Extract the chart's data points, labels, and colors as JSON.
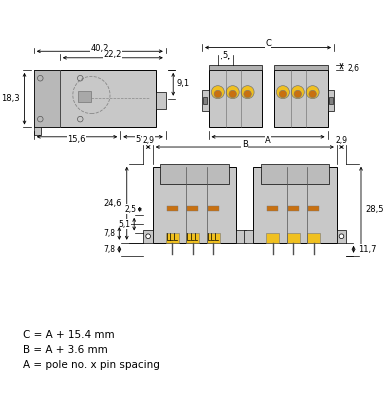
{
  "bg_color": "#ffffff",
  "line_color": "#000000",
  "gray_fill": "#c8c8c8",
  "gray_light": "#d8d8d8",
  "gray_dark": "#909090",
  "yellow_fill": "#f0c020",
  "orange_fill": "#c87010",
  "formula_lines": [
    "C = A + 15.4 mm",
    "B = A + 3.6 mm",
    "A = pole no. x pin spacing"
  ],
  "dim_fs": 6.0,
  "lw": 0.7
}
